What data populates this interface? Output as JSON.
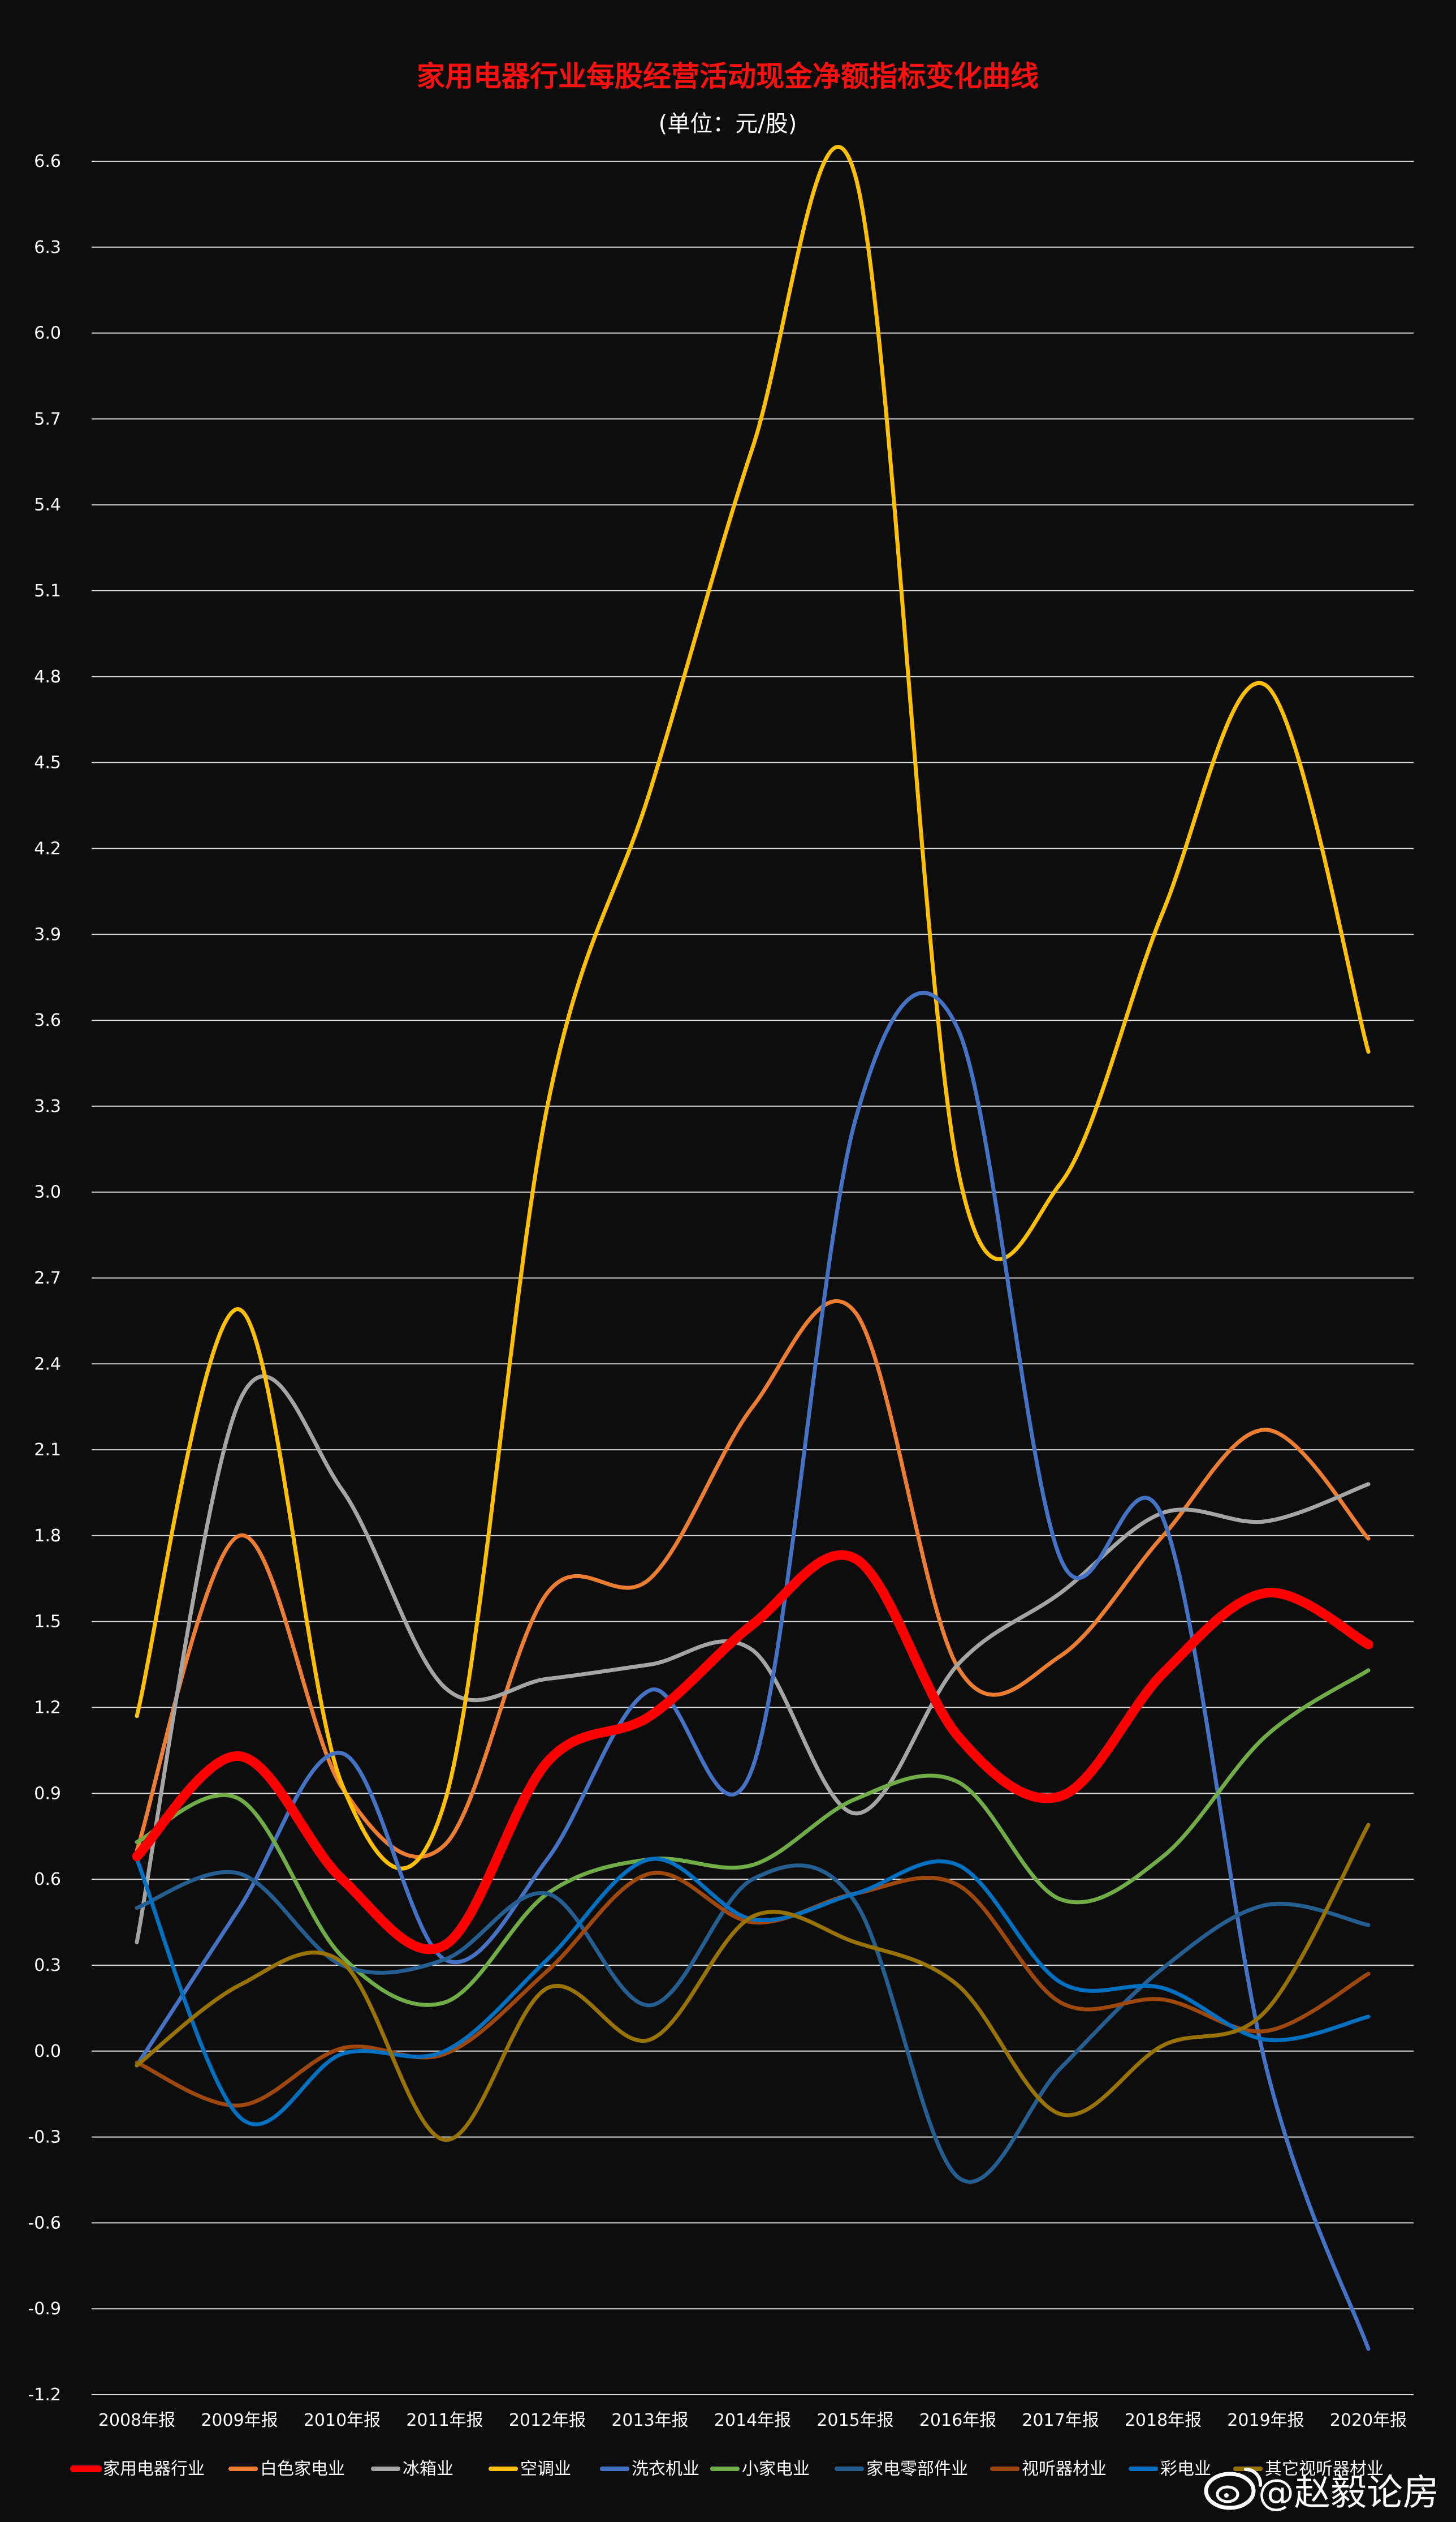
{
  "chart_data": {
    "type": "line",
    "title": "家用电器行业每股经营活动现金净额指标变化曲线",
    "subtitle": "(单位：元/股)",
    "categories": [
      "2008年报",
      "2009年报",
      "2010年报",
      "2011年报",
      "2012年报",
      "2013年报",
      "2014年报",
      "2015年报",
      "2016年报",
      "2017年报",
      "2018年报",
      "2019年报",
      "2020年报"
    ],
    "ylim": [
      -1.2,
      6.6
    ],
    "yticks": [
      "6.6",
      "6.3",
      "6.0",
      "5.7",
      "5.4",
      "5.1",
      "4.8",
      "4.5",
      "4.2",
      "3.9",
      "3.6",
      "3.3",
      "3.0",
      "2.7",
      "2.4",
      "2.1",
      "1.8",
      "1.5",
      "1.2",
      "0.9",
      "0.6",
      "0.3",
      "0.0",
      "-0.3",
      "-0.6",
      "-0.9",
      "-1.2"
    ],
    "grid": true,
    "legend_position": "bottom",
    "series": [
      {
        "name": "家用电器行业",
        "color": "#ff0000",
        "values": [
          0.68,
          1.03,
          0.6,
          0.37,
          1.01,
          1.17,
          1.49,
          1.72,
          1.1,
          0.89,
          1.32,
          1.6,
          1.42
        ]
      },
      {
        "name": "白色家电业",
        "color": "#ed7d31",
        "values": [
          0.7,
          1.8,
          0.92,
          0.72,
          1.6,
          1.65,
          2.25,
          2.58,
          1.34,
          1.38,
          1.8,
          2.17,
          1.79
        ]
      },
      {
        "name": "冰箱业",
        "color": "#a5a5a5",
        "values": [
          0.38,
          2.27,
          1.96,
          1.27,
          1.3,
          1.35,
          1.4,
          0.83,
          1.35,
          1.6,
          1.88,
          1.85,
          1.98
        ]
      },
      {
        "name": "空调业",
        "color": "#ffc000",
        "values": [
          1.17,
          2.59,
          0.93,
          0.87,
          3.3,
          4.4,
          5.6,
          6.55,
          3.08,
          3.03,
          3.98,
          4.77,
          3.49
        ]
      },
      {
        "name": "洗衣机业",
        "color": "#4472c4",
        "values": [
          -0.05,
          0.5,
          1.04,
          0.32,
          0.67,
          1.26,
          0.99,
          3.25,
          3.57,
          1.72,
          1.86,
          -0.05,
          -1.04
        ]
      },
      {
        "name": "小家电业",
        "color": "#70ad47",
        "values": [
          0.73,
          0.88,
          0.33,
          0.17,
          0.55,
          0.67,
          0.65,
          0.88,
          0.94,
          0.53,
          0.68,
          1.1,
          1.33
        ]
      },
      {
        "name": "家电零部件业",
        "color": "#255e91",
        "values": [
          0.5,
          0.62,
          0.3,
          0.32,
          0.55,
          0.16,
          0.6,
          0.52,
          -0.44,
          -0.06,
          0.29,
          0.51,
          0.44
        ]
      },
      {
        "name": "视听器材业",
        "color": "#9e480e",
        "values": [
          -0.04,
          -0.19,
          0.01,
          -0.01,
          0.28,
          0.62,
          0.45,
          0.55,
          0.58,
          0.17,
          0.18,
          0.07,
          0.27
        ]
      },
      {
        "name": "彩电业",
        "color": "#0070c0",
        "values": [
          0.67,
          -0.23,
          -0.01,
          0.0,
          0.32,
          0.67,
          0.46,
          0.55,
          0.65,
          0.24,
          0.22,
          0.04,
          0.12
        ]
      },
      {
        "name": "其它视听器材业",
        "color": "#997300",
        "values": [
          -0.05,
          0.23,
          0.31,
          -0.31,
          0.22,
          0.04,
          0.47,
          0.38,
          0.23,
          -0.22,
          0.02,
          0.14,
          0.79
        ]
      }
    ]
  },
  "watermark": {
    "icon": "weibo-icon",
    "text": "@赵毅论房"
  }
}
